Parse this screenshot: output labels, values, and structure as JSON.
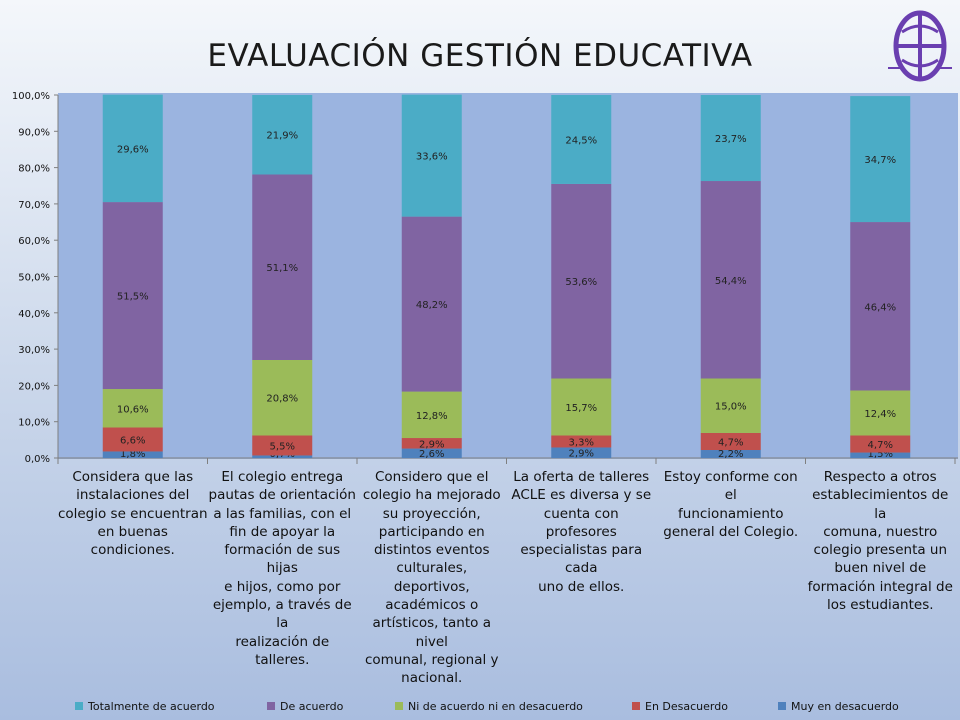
{
  "chart_data": {
    "type": "bar",
    "stacked": true,
    "title": "EVALUACIÓN GESTIÓN EDUCATIVA",
    "ylim": [
      0,
      100
    ],
    "y_ticks": [
      "0,0%",
      "10,0%",
      "20,0%",
      "30,0%",
      "40,0%",
      "50,0%",
      "60,0%",
      "70,0%",
      "80,0%",
      "90,0%",
      "100,0%"
    ],
    "grid": false,
    "legend_position": "bottom",
    "categories": [
      "Considera que las instalaciones del colegio se encuentran en buenas condiciones.",
      "El colegio entrega pautas de orientación a las familias, con el fin de apoyar la formación de sus hijas e hijos, como por ejemplo, a través de la realización de talleres.",
      "Considero que el colegio ha mejorado su proyección, participando en distintos eventos culturales, deportivos, académicos o artísticos, tanto a nivel comunal, regional y nacional.",
      "La oferta de talleres ACLE es diversa y se cuenta con profesores especialistas para cada uno de ellos.",
      "Estoy conforme con el funcionamiento general del Colegio.",
      "Respecto a otros establecimientos de la comuna, nuestro colegio presenta un buen nivel de formación integral de los estudiantes."
    ],
    "category_lines": [
      [
        "Considera que las",
        "instalaciones del",
        "colegio se encuentran",
        "en buenas",
        "condiciones."
      ],
      [
        "El colegio entrega",
        "pautas de orientación",
        "a las familias, con el",
        "fin de apoyar la",
        "formación de sus hijas",
        "e hijos, como por",
        "ejemplo, a través de la",
        "realización de talleres."
      ],
      [
        "Considero que el",
        "colegio ha mejorado",
        "su proyección,",
        "participando en",
        "distintos eventos",
        "culturales, deportivos,",
        "académicos o",
        "artísticos, tanto a nivel",
        "comunal, regional y",
        "nacional."
      ],
      [
        "La oferta de talleres",
        "ACLE es diversa y se",
        "cuenta con profesores",
        "especialistas para cada",
        "uno de ellos."
      ],
      [
        "Estoy conforme con el",
        "funcionamiento",
        "general del Colegio."
      ],
      [
        "Respecto a otros",
        "establecimientos de la",
        "comuna, nuestro",
        "colegio presenta un",
        "buen nivel de",
        "formación integral de",
        "los estudiantes."
      ]
    ],
    "series": [
      {
        "name": "Muy en desacuerdo",
        "color": "#4f81bd",
        "values": [
          1.8,
          0.7,
          2.6,
          2.9,
          2.2,
          1.5
        ],
        "labels": [
          "1,8%",
          "0,7%",
          "2,6%",
          "2,9%",
          "2,2%",
          "1,5%"
        ]
      },
      {
        "name": "En Desacuerdo",
        "color": "#c0504d",
        "values": [
          6.6,
          5.5,
          2.9,
          3.3,
          4.7,
          4.7
        ],
        "labels": [
          "6,6%",
          "5,5%",
          "2,9%",
          "3,3%",
          "4,7%",
          "4,7%"
        ]
      },
      {
        "name": "Ni de acuerdo ni en desacuerdo",
        "color": "#9bbb59",
        "values": [
          10.6,
          20.8,
          12.8,
          15.7,
          15.0,
          12.4
        ],
        "labels": [
          "10,6%",
          "20,8%",
          "12,8%",
          "15,7%",
          "15,0%",
          "12,4%"
        ]
      },
      {
        "name": "De acuerdo",
        "color": "#8064a2",
        "values": [
          51.5,
          51.1,
          48.2,
          53.6,
          54.4,
          46.4
        ],
        "labels": [
          "51,5%",
          "51,1%",
          "48,2%",
          "53,6%",
          "54,4%",
          "46,4%"
        ]
      },
      {
        "name": "Totalmente de acuerdo",
        "color": "#4bacc6",
        "values": [
          29.6,
          21.9,
          33.6,
          24.5,
          23.7,
          34.7
        ],
        "labels": [
          "29,6%",
          "21,9%",
          "33,6%",
          "24,5%",
          "23,7%",
          "34,7%"
        ]
      }
    ],
    "legend_order": [
      "Totalmente de acuerdo",
      "De acuerdo",
      "Ni de acuerdo ni en desacuerdo",
      "En Desacuerdo",
      "Muy en desacuerdo"
    ]
  },
  "logo": {
    "color": "#6a3fb0"
  }
}
